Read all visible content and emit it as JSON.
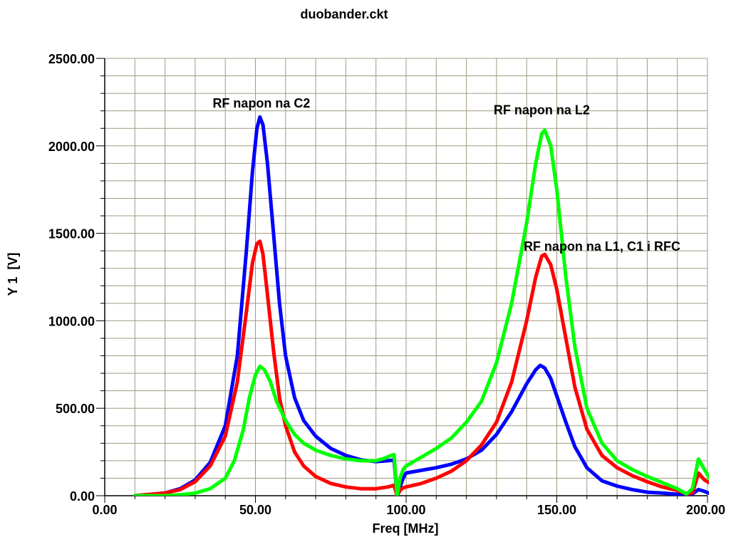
{
  "chart_data": {
    "type": "line",
    "title": "duobander.ckt",
    "xlabel": "Freq [MHz]",
    "ylabel": "Y 1  [V]",
    "xlim": [
      0,
      200
    ],
    "ylim": [
      0,
      2500
    ],
    "x_ticks": [
      "0.00",
      "50.00",
      "100.00",
      "150.00",
      "200.00"
    ],
    "y_ticks": [
      "0.00",
      "500.00",
      "1000.00",
      "1500.00",
      "2000.00",
      "2500.00"
    ],
    "grid": true,
    "series": [
      {
        "color": "#0000ff",
        "points": [
          [
            10,
            0
          ],
          [
            20,
            15
          ],
          [
            25,
            40
          ],
          [
            30,
            90
          ],
          [
            35,
            190
          ],
          [
            40,
            400
          ],
          [
            44,
            800
          ],
          [
            47,
            1400
          ],
          [
            49,
            1850
          ],
          [
            50.5,
            2100
          ],
          [
            51.5,
            2165
          ],
          [
            52.5,
            2120
          ],
          [
            54,
            1900
          ],
          [
            56,
            1500
          ],
          [
            58,
            1100
          ],
          [
            60,
            800
          ],
          [
            63,
            560
          ],
          [
            66,
            430
          ],
          [
            70,
            340
          ],
          [
            75,
            270
          ],
          [
            80,
            230
          ],
          [
            85,
            205
          ],
          [
            90,
            195
          ],
          [
            94,
            200
          ],
          [
            96,
            205
          ],
          [
            97,
            0
          ],
          [
            98,
            50
          ],
          [
            99,
            100
          ],
          [
            100,
            130
          ],
          [
            105,
            145
          ],
          [
            110,
            160
          ],
          [
            115,
            180
          ],
          [
            120,
            210
          ],
          [
            125,
            260
          ],
          [
            130,
            350
          ],
          [
            135,
            480
          ],
          [
            140,
            640
          ],
          [
            143,
            720
          ],
          [
            144.5,
            745
          ],
          [
            146,
            730
          ],
          [
            148,
            670
          ],
          [
            150,
            570
          ],
          [
            153,
            420
          ],
          [
            156,
            280
          ],
          [
            160,
            160
          ],
          [
            165,
            85
          ],
          [
            170,
            55
          ],
          [
            175,
            35
          ],
          [
            180,
            20
          ],
          [
            185,
            15
          ],
          [
            190,
            8
          ],
          [
            193,
            5
          ],
          [
            195,
            10
          ],
          [
            197,
            35
          ],
          [
            199,
            25
          ],
          [
            201,
            10
          ]
        ]
      },
      {
        "color": "#ff0000",
        "points": [
          [
            10,
            0
          ],
          [
            20,
            15
          ],
          [
            25,
            35
          ],
          [
            30,
            80
          ],
          [
            35,
            170
          ],
          [
            40,
            340
          ],
          [
            44,
            650
          ],
          [
            47,
            1050
          ],
          [
            49,
            1330
          ],
          [
            50.5,
            1440
          ],
          [
            51.5,
            1455
          ],
          [
            52.5,
            1380
          ],
          [
            54,
            1150
          ],
          [
            56,
            830
          ],
          [
            58,
            560
          ],
          [
            60,
            400
          ],
          [
            63,
            250
          ],
          [
            66,
            170
          ],
          [
            70,
            110
          ],
          [
            75,
            70
          ],
          [
            80,
            50
          ],
          [
            85,
            40
          ],
          [
            90,
            40
          ],
          [
            94,
            50
          ],
          [
            96,
            60
          ],
          [
            97,
            0
          ],
          [
            98,
            30
          ],
          [
            99,
            45
          ],
          [
            100,
            50
          ],
          [
            105,
            70
          ],
          [
            110,
            100
          ],
          [
            115,
            140
          ],
          [
            120,
            200
          ],
          [
            125,
            290
          ],
          [
            130,
            420
          ],
          [
            135,
            650
          ],
          [
            140,
            1000
          ],
          [
            143,
            1250
          ],
          [
            145,
            1370
          ],
          [
            146,
            1380
          ],
          [
            148,
            1320
          ],
          [
            150,
            1180
          ],
          [
            153,
            900
          ],
          [
            156,
            620
          ],
          [
            160,
            380
          ],
          [
            165,
            230
          ],
          [
            170,
            160
          ],
          [
            175,
            115
          ],
          [
            180,
            80
          ],
          [
            185,
            50
          ],
          [
            190,
            30
          ],
          [
            193,
            10
          ],
          [
            195,
            15
          ],
          [
            197,
            130
          ],
          [
            199,
            90
          ],
          [
            201,
            70
          ]
        ]
      },
      {
        "color": "#00ff00",
        "points": [
          [
            10,
            0
          ],
          [
            20,
            0
          ],
          [
            25,
            5
          ],
          [
            30,
            15
          ],
          [
            35,
            40
          ],
          [
            40,
            100
          ],
          [
            43,
            200
          ],
          [
            46,
            380
          ],
          [
            48,
            560
          ],
          [
            50,
            690
          ],
          [
            51.5,
            740
          ],
          [
            53,
            720
          ],
          [
            55,
            650
          ],
          [
            57,
            540
          ],
          [
            60,
            430
          ],
          [
            63,
            350
          ],
          [
            66,
            300
          ],
          [
            70,
            260
          ],
          [
            75,
            230
          ],
          [
            80,
            210
          ],
          [
            85,
            200
          ],
          [
            90,
            200
          ],
          [
            93,
            215
          ],
          [
            95,
            230
          ],
          [
            96,
            235
          ],
          [
            97,
            0
          ],
          [
            98,
            100
          ],
          [
            99,
            150
          ],
          [
            100,
            170
          ],
          [
            105,
            220
          ],
          [
            110,
            270
          ],
          [
            115,
            330
          ],
          [
            120,
            420
          ],
          [
            125,
            540
          ],
          [
            130,
            760
          ],
          [
            135,
            1100
          ],
          [
            140,
            1560
          ],
          [
            143,
            1900
          ],
          [
            145,
            2070
          ],
          [
            146,
            2090
          ],
          [
            148,
            2000
          ],
          [
            150,
            1750
          ],
          [
            153,
            1250
          ],
          [
            156,
            850
          ],
          [
            160,
            500
          ],
          [
            165,
            300
          ],
          [
            170,
            200
          ],
          [
            175,
            150
          ],
          [
            180,
            110
          ],
          [
            185,
            75
          ],
          [
            190,
            40
          ],
          [
            193,
            10
          ],
          [
            195,
            40
          ],
          [
            197,
            210
          ],
          [
            199,
            150
          ],
          [
            201,
            90
          ]
        ]
      }
    ],
    "annotations": [
      {
        "text": "RF napon na C2",
        "x": 52,
        "y": 2220,
        "color": "#000000"
      },
      {
        "text": "RF napon na L2",
        "x": 145,
        "y": 2180,
        "color": "#000000"
      },
      {
        "text": "RF napon na L1, C1 i RFC",
        "x": 165,
        "y": 1400,
        "color": "#000000"
      }
    ]
  }
}
